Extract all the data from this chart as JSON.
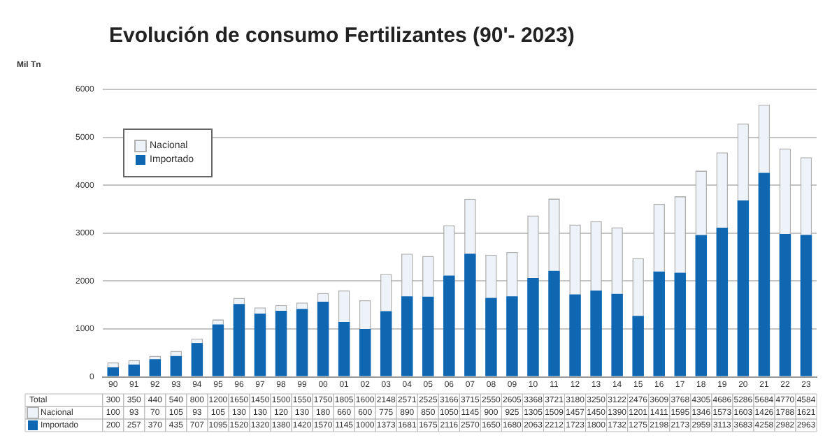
{
  "chart_data": {
    "type": "bar",
    "title": "Evolución de consumo Fertilizantes  (90'- 2023)",
    "ylabel": "Mil Tn",
    "categories": [
      "90",
      "91",
      "92",
      "93",
      "94",
      "95",
      "96",
      "97",
      "98",
      "99",
      "00",
      "01",
      "02",
      "03",
      "04",
      "05",
      "06",
      "07",
      "08",
      "09",
      "10",
      "11",
      "12",
      "13",
      "14",
      "15",
      "16",
      "17",
      "18",
      "19",
      "20",
      "21",
      "22",
      "23"
    ],
    "series": [
      {
        "name": "Importado",
        "color": "#0f67b1",
        "values": [
          200,
          257,
          370,
          435,
          707,
          1095,
          1520,
          1320,
          1380,
          1420,
          1570,
          1145,
          1000,
          1373,
          1681,
          1675,
          2116,
          2570,
          1650,
          1680,
          2063,
          2212,
          1723,
          1800,
          1732,
          1275,
          2198,
          2173,
          2959,
          3113,
          3683,
          4258,
          2982,
          2963
        ]
      },
      {
        "name": "Nacional",
        "color": "#eef3fa",
        "values": [
          100,
          93,
          70,
          105,
          93,
          105,
          130,
          130,
          120,
          130,
          180,
          660,
          600,
          775,
          890,
          850,
          1050,
          1145,
          900,
          925,
          1305,
          1509,
          1457,
          1450,
          1390,
          1201,
          1411,
          1595,
          1346,
          1573,
          1603,
          1426,
          1788,
          1621
        ]
      }
    ],
    "totals": [
      "300",
      "350",
      "440",
      "540",
      "800",
      "1200",
      "1650",
      "1450",
      "1500",
      "1550",
      "1750",
      "1805",
      "1600",
      "2148",
      "2571",
      "2525",
      "3166",
      "3715",
      "2550",
      "2605",
      "3368",
      "3721",
      "3180",
      "3250",
      "3122",
      "2476",
      "3609",
      "3768",
      "4305",
      "4686",
      "5286",
      "5684",
      "4770",
      "4584"
    ],
    "annotations": [
      "Total"
    ],
    "stacked": true,
    "data_labels": true,
    "ylim": [
      0,
      6000
    ],
    "yticks": [
      0,
      1000,
      2000,
      3000,
      4000,
      5000,
      6000
    ],
    "grid": "y",
    "legend": "top left"
  }
}
